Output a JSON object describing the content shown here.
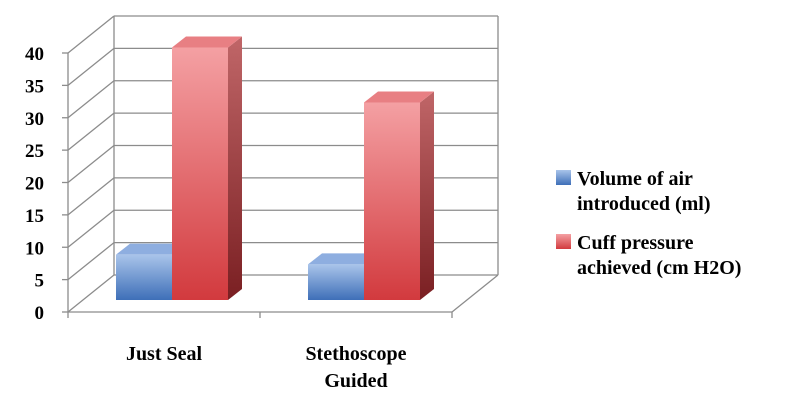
{
  "chart_data": {
    "type": "bar",
    "categories": [
      [
        "Just Seal"
      ],
      [
        "Stethoscope",
        "Guided"
      ]
    ],
    "series": [
      {
        "name": [
          "Volume of air",
          "introduced (ml)"
        ],
        "values": [
          7,
          5.5
        ],
        "color": "#4f81bd"
      },
      {
        "name": [
          "Cuff pressure",
          "achieved (cm H2O)"
        ],
        "values": [
          39,
          30.5
        ],
        "color": "#c0504d"
      }
    ],
    "yticks": [
      0,
      5,
      10,
      15,
      20,
      25,
      30,
      35,
      40
    ],
    "ylim": [
      0,
      40
    ],
    "grid": true,
    "three_d": true,
    "legend": "right"
  }
}
